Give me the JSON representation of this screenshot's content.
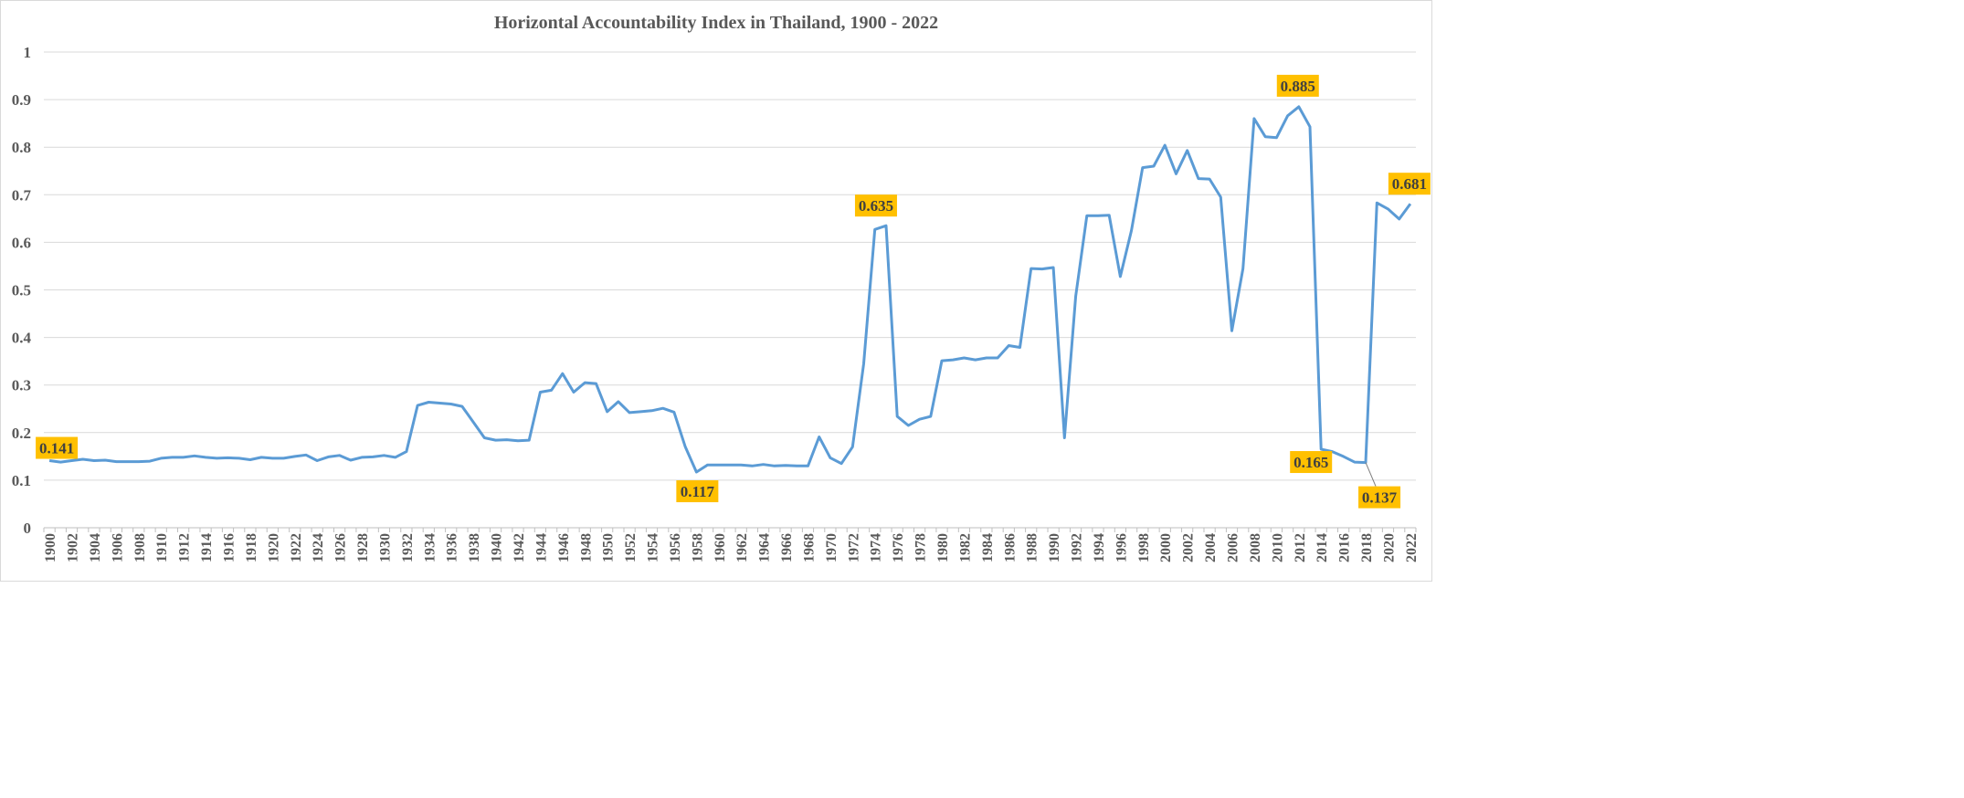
{
  "chart_data": {
    "type": "line",
    "title": "Horizontal Accountability Index in Thailand, 1900 - 2022",
    "xlabel": "",
    "ylabel": "",
    "ylim": [
      0,
      1
    ],
    "yticks": [
      "0",
      "0.1",
      "0.2",
      "0.3",
      "0.4",
      "0.5",
      "0.6",
      "0.7",
      "0.8",
      "0.9",
      "1"
    ],
    "xticks": [
      "1900",
      "1902",
      "1904",
      "1906",
      "1908",
      "1910",
      "1912",
      "1914",
      "1916",
      "1918",
      "1920",
      "1922",
      "1924",
      "1926",
      "1928",
      "1930",
      "1932",
      "1934",
      "1936",
      "1938",
      "1940",
      "1942",
      "1944",
      "1946",
      "1948",
      "1950",
      "1952",
      "1954",
      "1956",
      "1958",
      "1960",
      "1962",
      "1964",
      "1966",
      "1968",
      "1970",
      "1972",
      "1974",
      "1976",
      "1978",
      "1980",
      "1982",
      "1984",
      "1986",
      "1988",
      "1990",
      "1992",
      "1994",
      "1996",
      "1998",
      "2000",
      "2002",
      "2004",
      "2006",
      "2008",
      "2010",
      "2012",
      "2014",
      "2016",
      "2018",
      "2020",
      "2022"
    ],
    "grid": true,
    "line_color": "#5b9bd5",
    "label_color": "#ffc000",
    "x": [
      1900,
      1901,
      1902,
      1903,
      1904,
      1905,
      1906,
      1907,
      1908,
      1909,
      1910,
      1911,
      1912,
      1913,
      1914,
      1915,
      1916,
      1917,
      1918,
      1919,
      1920,
      1921,
      1922,
      1923,
      1924,
      1925,
      1926,
      1927,
      1928,
      1929,
      1930,
      1931,
      1932,
      1933,
      1934,
      1935,
      1936,
      1937,
      1938,
      1939,
      1940,
      1941,
      1942,
      1943,
      1944,
      1945,
      1946,
      1947,
      1948,
      1949,
      1950,
      1951,
      1952,
      1953,
      1954,
      1955,
      1956,
      1957,
      1958,
      1959,
      1960,
      1961,
      1962,
      1963,
      1964,
      1965,
      1966,
      1967,
      1968,
      1969,
      1970,
      1971,
      1972,
      1973,
      1974,
      1975,
      1976,
      1977,
      1978,
      1979,
      1980,
      1981,
      1982,
      1983,
      1984,
      1985,
      1986,
      1987,
      1988,
      1989,
      1990,
      1991,
      1992,
      1993,
      1994,
      1995,
      1996,
      1997,
      1998,
      1999,
      2000,
      2001,
      2002,
      2003,
      2004,
      2005,
      2006,
      2007,
      2008,
      2009,
      2010,
      2011,
      2012,
      2013,
      2014,
      2015,
      2016,
      2017,
      2018,
      2019,
      2020,
      2021,
      2022
    ],
    "series": [
      {
        "values": [
          0.141,
          0.138,
          0.141,
          0.144,
          0.141,
          0.142,
          0.139,
          0.139,
          0.139,
          0.14,
          0.146,
          0.148,
          0.148,
          0.151,
          0.148,
          0.146,
          0.147,
          0.146,
          0.143,
          0.148,
          0.146,
          0.146,
          0.15,
          0.153,
          0.141,
          0.149,
          0.152,
          0.142,
          0.148,
          0.149,
          0.152,
          0.148,
          0.16,
          0.257,
          0.264,
          0.262,
          0.26,
          0.255,
          0.222,
          0.189,
          0.184,
          0.185,
          0.183,
          0.184,
          0.285,
          0.289,
          0.324,
          0.285,
          0.305,
          0.303,
          0.244,
          0.265,
          0.242,
          0.244,
          0.246,
          0.251,
          0.243,
          0.17,
          0.117,
          0.132,
          0.132,
          0.132,
          0.132,
          0.13,
          0.133,
          0.13,
          0.131,
          0.13,
          0.13,
          0.191,
          0.147,
          0.135,
          0.17,
          0.345,
          0.627,
          0.635,
          0.234,
          0.215,
          0.228,
          0.234,
          0.351,
          0.353,
          0.357,
          0.353,
          0.357,
          0.357,
          0.383,
          0.379,
          0.545,
          0.544,
          0.547,
          0.189,
          0.487,
          0.656,
          0.656,
          0.657,
          0.528,
          0.625,
          0.757,
          0.76,
          0.804,
          0.744,
          0.793,
          0.734,
          0.733,
          0.695,
          0.414,
          0.545,
          0.86,
          0.822,
          0.82,
          0.866,
          0.885,
          0.843,
          0.165,
          0.16,
          0.15,
          0.138,
          0.137,
          0.683,
          0.67,
          0.649,
          0.681
        ]
      }
    ],
    "data_labels": [
      {
        "x": 1900,
        "y": 0.141,
        "text": "0.141"
      },
      {
        "x": 1958,
        "y": 0.117,
        "text": "0.117"
      },
      {
        "x": 1975,
        "y": 0.635,
        "text": "0.635"
      },
      {
        "x": 2012,
        "y": 0.885,
        "text": "0.885"
      },
      {
        "x": 2014,
        "y": 0.165,
        "text": "0.165"
      },
      {
        "x": 2018,
        "y": 0.137,
        "text": "0.137"
      },
      {
        "x": 2022,
        "y": 0.681,
        "text": "0.681"
      }
    ]
  }
}
